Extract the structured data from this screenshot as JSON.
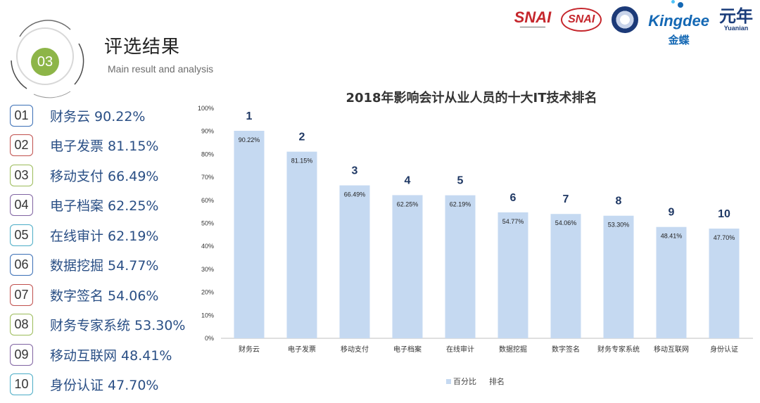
{
  "header": {
    "badge": "03",
    "title": "评选结果",
    "subtitle": "Main result and analysis"
  },
  "logos": [
    {
      "name": "snai-logo",
      "text": "SNAI"
    },
    {
      "name": "snai-center-logo",
      "text": "SNAI"
    },
    {
      "name": "seal-logo",
      "text": ""
    },
    {
      "name": "kingdee-logo",
      "text": "Kingdee",
      "text_cn": "金蝶"
    },
    {
      "name": "yuanian-logo",
      "text": "元年",
      "text_en": "Yuanian"
    }
  ],
  "ranking": [
    {
      "num": "01",
      "label": "财务云 90.22%",
      "border": "#3b6fb6"
    },
    {
      "num": "02",
      "label": "电子发票 81.15%",
      "border": "#c0504d"
    },
    {
      "num": "03",
      "label": "移动支付 66.49%",
      "border": "#9bbb59"
    },
    {
      "num": "04",
      "label": "电子档案 62.25%",
      "border": "#8064a2"
    },
    {
      "num": "05",
      "label": "在线审计 62.19%",
      "border": "#4bacc6"
    },
    {
      "num": "06",
      "label": "数据挖掘 54.77%",
      "border": "#3b6fb6"
    },
    {
      "num": "07",
      "label": "数字签名 54.06%",
      "border": "#c0504d"
    },
    {
      "num": "08",
      "label": "财务专家系统 53.30%",
      "border": "#9bbb59"
    },
    {
      "num": "09",
      "label": "移动互联网 48.41%",
      "border": "#8064a2"
    },
    {
      "num": "10",
      "label": "身份认证 47.70%",
      "border": "#4bacc6"
    }
  ],
  "chart_data": {
    "type": "bar",
    "title": "2018年影响会计从业人员的十大IT技术排名",
    "categories": [
      "财务云",
      "电子发票",
      "移动支付",
      "电子档案",
      "在线审计",
      "数据挖掘",
      "数字签名",
      "财务专家系统",
      "移动互联网",
      "身份认证"
    ],
    "series": [
      {
        "name": "百分比",
        "values": [
          90.22,
          81.15,
          66.49,
          62.25,
          62.19,
          54.77,
          54.06,
          53.3,
          48.41,
          47.7
        ],
        "color": "#c5d9f1"
      },
      {
        "name": "排名",
        "values": [
          1,
          2,
          3,
          4,
          5,
          6,
          7,
          8,
          9,
          10
        ]
      }
    ],
    "data_labels": [
      "90.22%",
      "81.15%",
      "66.49%",
      "62.25%",
      "62.19%",
      "54.77%",
      "54.06%",
      "53.30%",
      "48.41%",
      "47.70%"
    ],
    "yticks": [
      "0%",
      "10%",
      "20%",
      "30%",
      "40%",
      "50%",
      "60%",
      "70%",
      "80%",
      "90%",
      "100%"
    ],
    "ylim": [
      0,
      100
    ],
    "grid": false,
    "legend": "bottom"
  },
  "colors": {
    "badge_green": "#8db548",
    "bar": "#c5d9f1",
    "text_blue": "#2a4f85"
  }
}
